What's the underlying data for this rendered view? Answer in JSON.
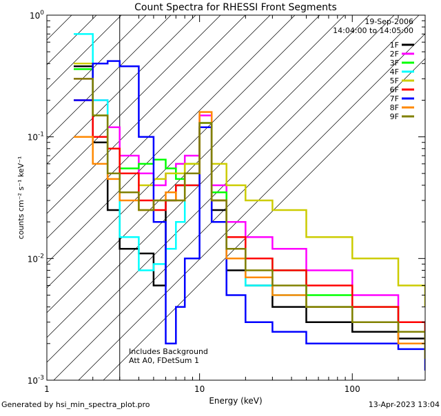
{
  "chart_data": {
    "type": "line",
    "title": "Count Spectra for RHESSI Front Segments",
    "xlabel": "Energy (keV)",
    "ylabel": "counts cm⁻² s⁻¹ keV⁻¹",
    "x_scale": "log",
    "y_scale": "log",
    "xlim": [
      1,
      300
    ],
    "ylim": [
      0.001,
      1
    ],
    "x_ticks": [
      {
        "value": 1,
        "label": "1"
      },
      {
        "value": 10,
        "label": "10"
      },
      {
        "value": 100,
        "label": "100"
      }
    ],
    "y_ticks": [
      {
        "value": 0.001,
        "base": "10",
        "exp": "-3"
      },
      {
        "value": 0.01,
        "base": "10",
        "exp": "-2"
      },
      {
        "value": 0.1,
        "base": "10",
        "exp": "-1"
      },
      {
        "value": 1,
        "base": "10",
        "exp": "0"
      }
    ],
    "date": "19-Sep-2006",
    "time_range": "14:04:00 to 14:05:00",
    "excluded_region_max_keV": 3,
    "annotations": [
      "Includes Background",
      "Att A0, FDetSum 1"
    ],
    "series": [
      {
        "name": "1F",
        "color": "#000000",
        "x": [
          1.5,
          2,
          2.5,
          3,
          4,
          5,
          6,
          7,
          8,
          10,
          12,
          15,
          20,
          30,
          50,
          100,
          200,
          300
        ],
        "y": [
          0.38,
          0.09,
          0.025,
          0.012,
          0.011,
          0.006,
          0.03,
          0.04,
          0.05,
          0.12,
          0.025,
          0.008,
          0.006,
          0.004,
          0.003,
          0.0025,
          0.0022,
          0.0015
        ]
      },
      {
        "name": "2F",
        "color": "#ff00ff",
        "x": [
          1.5,
          2,
          2.5,
          3,
          4,
          5,
          6,
          7,
          8,
          10,
          12,
          15,
          20,
          30,
          50,
          100,
          200,
          300
        ],
        "y": [
          0.3,
          0.2,
          0.12,
          0.07,
          0.05,
          0.04,
          0.05,
          0.06,
          0.07,
          0.15,
          0.04,
          0.02,
          0.015,
          0.012,
          0.008,
          0.005,
          0.003,
          0.002
        ]
      },
      {
        "name": "3F",
        "color": "#00ff00",
        "x": [
          1.5,
          2,
          2.5,
          3,
          4,
          5,
          6,
          7,
          8,
          10,
          12,
          15,
          20,
          30,
          50,
          100,
          200,
          300
        ],
        "y": [
          0.36,
          0.15,
          0.08,
          0.055,
          0.06,
          0.065,
          0.055,
          0.045,
          0.06,
          0.13,
          0.035,
          0.015,
          0.01,
          0.008,
          0.005,
          0.004,
          0.003,
          0.002
        ]
      },
      {
        "name": "4F",
        "color": "#00ffff",
        "x": [
          1.5,
          2,
          2.5,
          3,
          4,
          5,
          6,
          7,
          8,
          10,
          12,
          15,
          20,
          30,
          50,
          100,
          200,
          300
        ],
        "y": [
          0.7,
          0.2,
          0.05,
          0.015,
          0.008,
          0.009,
          0.012,
          0.02,
          0.04,
          0.12,
          0.03,
          0.01,
          0.006,
          0.005,
          0.004,
          0.003,
          0.0025,
          0.0015
        ]
      },
      {
        "name": "5F",
        "color": "#cccc00",
        "x": [
          1.5,
          2,
          2.5,
          3,
          4,
          5,
          6,
          7,
          8,
          10,
          12,
          15,
          20,
          30,
          50,
          100,
          200,
          300
        ],
        "y": [
          0.4,
          0.15,
          0.08,
          0.05,
          0.04,
          0.045,
          0.05,
          0.05,
          0.06,
          0.12,
          0.06,
          0.04,
          0.03,
          0.025,
          0.015,
          0.01,
          0.006,
          0.004
        ]
      },
      {
        "name": "6F",
        "color": "#ff0000",
        "x": [
          1.5,
          2,
          2.5,
          3,
          4,
          5,
          6,
          7,
          8,
          10,
          12,
          15,
          20,
          30,
          50,
          100,
          200,
          300
        ],
        "y": [
          0.2,
          0.1,
          0.08,
          0.05,
          0.03,
          0.025,
          0.03,
          0.04,
          0.04,
          0.12,
          0.03,
          0.015,
          0.01,
          0.008,
          0.006,
          0.004,
          0.003,
          0.002
        ]
      },
      {
        "name": "7F",
        "color": "#0000ff",
        "x": [
          1.5,
          2,
          2.5,
          3,
          4,
          5,
          6,
          7,
          8,
          10,
          12,
          15,
          20,
          30,
          50,
          100,
          200,
          300
        ],
        "y": [
          0.2,
          0.4,
          0.42,
          0.38,
          0.1,
          0.02,
          0.002,
          0.004,
          0.01,
          0.12,
          0.02,
          0.005,
          0.003,
          0.0025,
          0.002,
          0.002,
          0.0018,
          0.0012
        ]
      },
      {
        "name": "8F",
        "color": "#ff8800",
        "x": [
          1.5,
          2,
          2.5,
          3,
          4,
          5,
          6,
          7,
          8,
          10,
          12,
          15,
          20,
          30,
          50,
          100,
          200,
          300
        ],
        "y": [
          0.1,
          0.06,
          0.045,
          0.03,
          0.025,
          0.03,
          0.035,
          0.03,
          0.05,
          0.16,
          0.03,
          0.01,
          0.007,
          0.005,
          0.004,
          0.003,
          0.002,
          0.0015
        ]
      },
      {
        "name": "9F",
        "color": "#808000",
        "x": [
          1.5,
          2,
          2.5,
          3,
          4,
          5,
          6,
          7,
          8,
          10,
          12,
          15,
          20,
          30,
          50,
          100,
          200,
          300
        ],
        "y": [
          0.3,
          0.15,
          0.05,
          0.035,
          0.025,
          0.03,
          0.03,
          0.03,
          0.05,
          0.13,
          0.03,
          0.012,
          0.008,
          0.006,
          0.004,
          0.003,
          0.0025,
          0.0015
        ]
      }
    ]
  },
  "footer": {
    "generated_by": "Generated by  hsi_min_spectra_plot.pro",
    "timestamp": "13-Apr-2023 13:04"
  }
}
